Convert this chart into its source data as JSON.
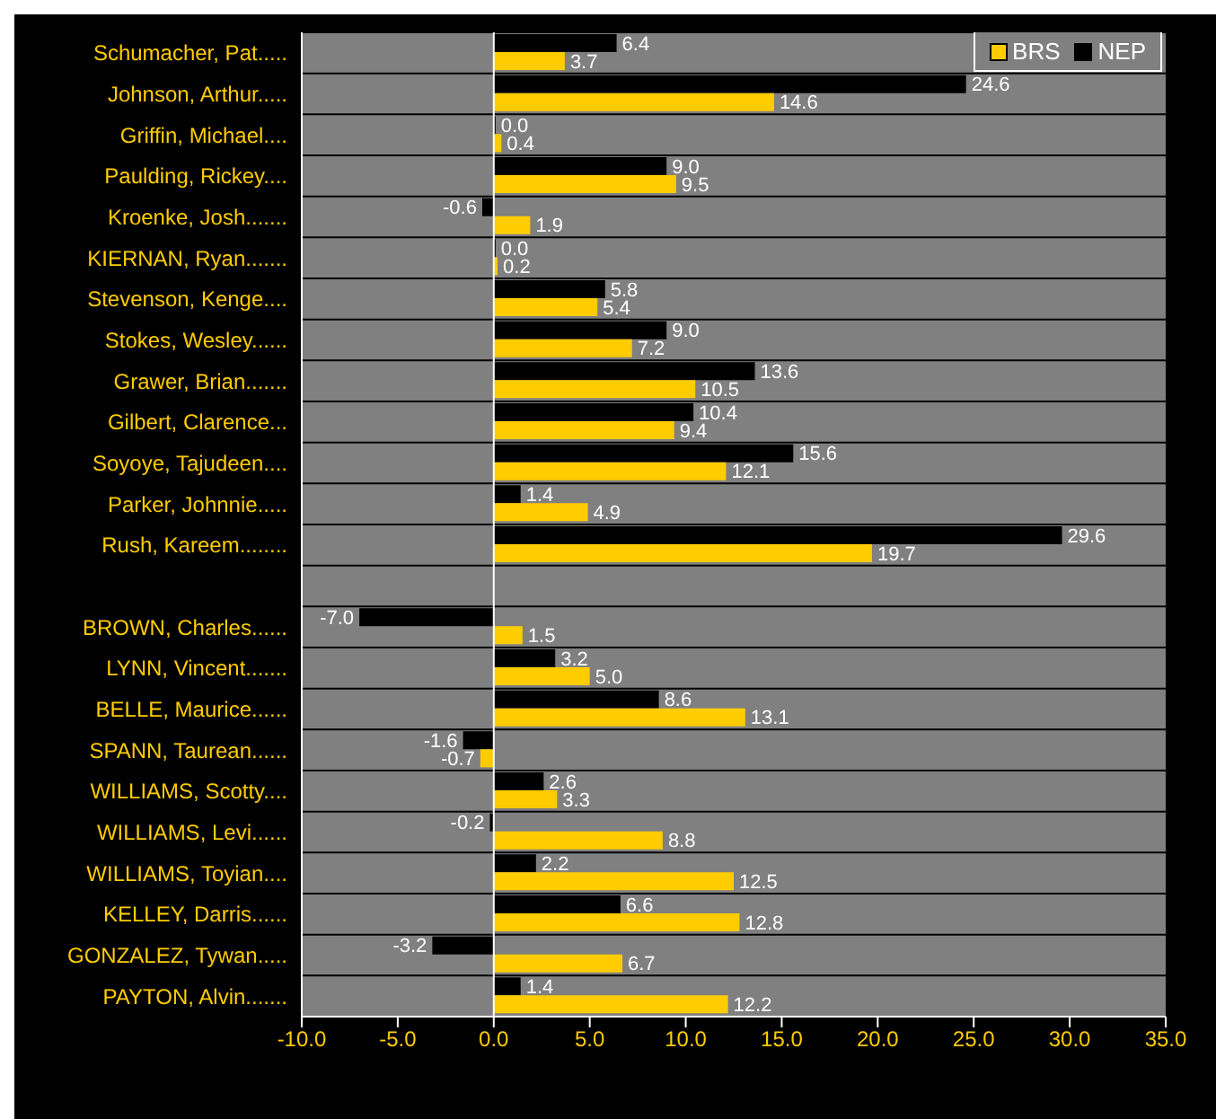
{
  "chart_data": {
    "type": "bar",
    "orientation": "horizontal",
    "categories": [
      "Schumacher, Pat.....",
      "Johnson, Arthur.....",
      "Griffin, Michael....",
      "Paulding, Rickey....",
      "Kroenke, Josh.......",
      "KIERNAN, Ryan.......",
      "Stevenson, Kenge....",
      "Stokes, Wesley......",
      "Grawer, Brian.......",
      "Gilbert, Clarence...",
      "Soyoye, Tajudeen....",
      "Parker, Johnnie.....",
      "Rush, Kareem........",
      null,
      "BROWN, Charles......",
      "LYNN, Vincent.......",
      "BELLE, Maurice......",
      "SPANN, Taurean......",
      "WILLIAMS, Scotty....",
      "WILLIAMS, Levi......",
      "WILLIAMS, Toyian....",
      "KELLEY, Darris......",
      "GONZALEZ, Tywan.....",
      "PAYTON, Alvin......."
    ],
    "series": [
      {
        "name": "BRS",
        "color": "#ffcc00",
        "values": [
          3.7,
          14.6,
          0.4,
          9.5,
          1.9,
          0.2,
          5.4,
          7.2,
          10.5,
          9.4,
          12.1,
          4.9,
          19.7,
          null,
          1.5,
          5.0,
          13.1,
          -0.7,
          3.3,
          8.8,
          12.5,
          12.8,
          6.7,
          12.2
        ],
        "value_labels": [
          "3.7",
          "14.6",
          "0.4",
          "9.5",
          "1.9",
          "0.2",
          "5.4",
          "7.2",
          "10.5",
          "9.4",
          "12.1",
          "4.9",
          "19.7",
          null,
          "1.5",
          "5.0",
          "13.1",
          "-0.7",
          "3.3",
          "8.8",
          "12.5",
          "12.8",
          "6.7",
          "12.2"
        ]
      },
      {
        "name": "NEP",
        "color": "#000000",
        "values": [
          6.4,
          24.6,
          0.0,
          9.0,
          -0.6,
          0.0,
          5.8,
          9.0,
          13.6,
          10.4,
          15.6,
          1.4,
          29.6,
          null,
          -7.0,
          3.2,
          8.6,
          -1.6,
          2.6,
          -0.2,
          2.2,
          6.6,
          -3.2,
          1.4
        ],
        "value_labels": [
          "6.4",
          "24.6",
          "0.0",
          "9.0",
          "-0.6",
          "0.0",
          "5.8",
          "9.0",
          "13.6",
          "10.4",
          "15.6",
          "1.4",
          "29.6",
          null,
          "-7.0",
          "3.2",
          "8.6",
          "-1.6",
          "2.6",
          "-0.2",
          "2.2",
          "6.6",
          "-3.2",
          "1.4"
        ]
      }
    ],
    "xlim": [
      -10,
      35
    ],
    "xticks": [
      {
        "value": -10,
        "label": "-10.0"
      },
      {
        "value": -5,
        "label": "-5.0"
      },
      {
        "value": 0,
        "label": "0.0"
      },
      {
        "value": 5,
        "label": "5.0"
      },
      {
        "value": 10,
        "label": "10.0"
      },
      {
        "value": 15,
        "label": "15.0"
      },
      {
        "value": 20,
        "label": "20.0"
      },
      {
        "value": 25,
        "label": "25.0"
      },
      {
        "value": 30,
        "label": "30.0"
      },
      {
        "value": 35,
        "label": "35.0"
      }
    ],
    "ref_lines": [
      {
        "axis": "x",
        "value": 0,
        "color": "#ffffff"
      }
    ],
    "grid": "y",
    "legend": "top right"
  }
}
